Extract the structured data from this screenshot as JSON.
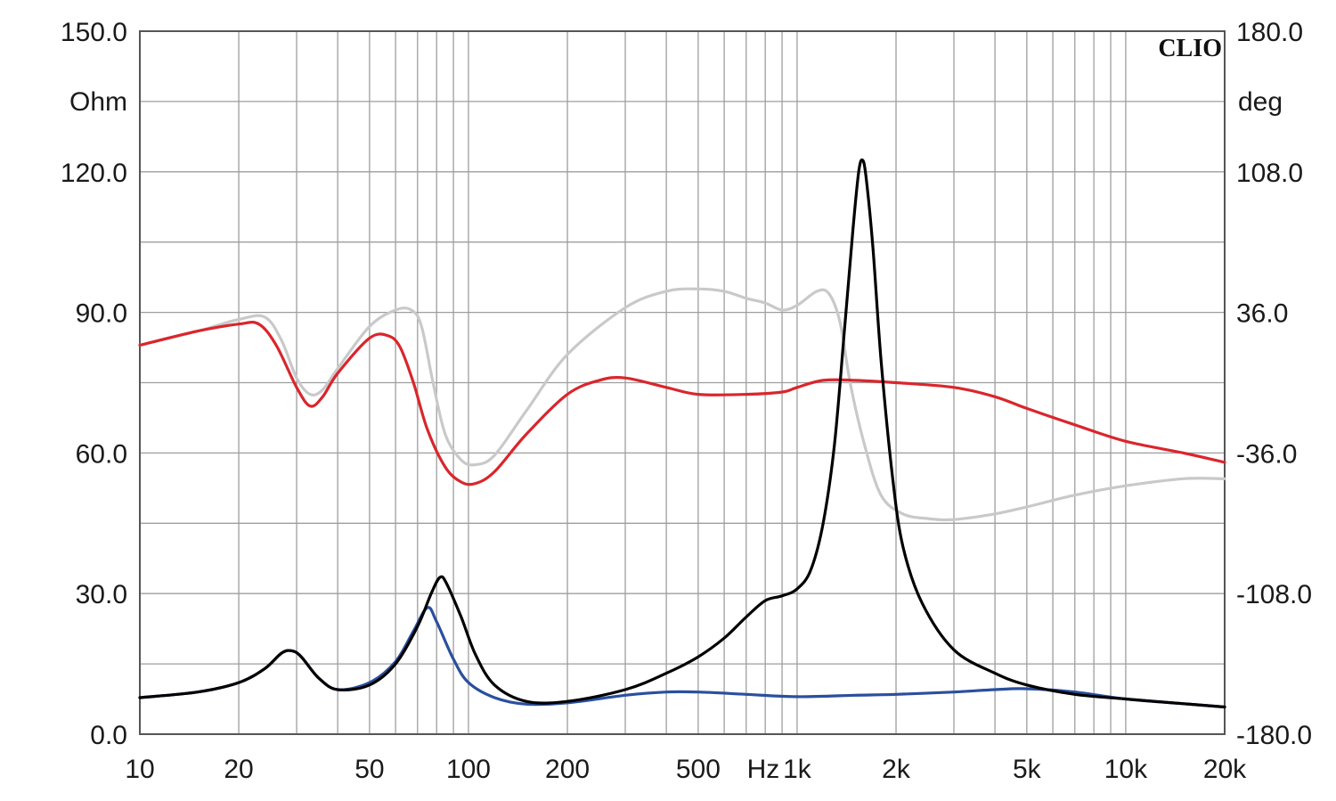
{
  "logo": "CLIO",
  "colors": {
    "background": "#ffffff",
    "grid": "#9e9e9e",
    "frame": "#555555",
    "impedance_black": "#000000",
    "impedance_blue": "#2a4f9e",
    "phase_red": "#d9262c",
    "phase_grey": "#c9c9c9"
  },
  "chart_data": {
    "type": "line",
    "x_scale": "log",
    "xlim": [
      10,
      20000
    ],
    "ylim_left": [
      0,
      150
    ],
    "ylim_right": [
      -180,
      180
    ],
    "grid": true,
    "left_unit": "Ohm",
    "right_unit": "deg",
    "x_tick_labels": [
      {
        "x": 10,
        "label": "10"
      },
      {
        "x": 20,
        "label": "20"
      },
      {
        "x": 50,
        "label": "50"
      },
      {
        "x": 100,
        "label": "100"
      },
      {
        "x": 200,
        "label": "200"
      },
      {
        "x": 500,
        "label": "500"
      },
      {
        "x": 1000,
        "label": "1k"
      },
      {
        "x": 2000,
        "label": "2k"
      },
      {
        "x": 5000,
        "label": "5k"
      },
      {
        "x": 10000,
        "label": "10k"
      },
      {
        "x": 20000,
        "label": "20k"
      }
    ],
    "x_unit_label": {
      "x": 1000,
      "label": "Hz"
    },
    "y_left_tick_labels": [
      {
        "y": 0,
        "label": "0.0"
      },
      {
        "y": 30,
        "label": "30.0"
      },
      {
        "y": 60,
        "label": "60.0"
      },
      {
        "y": 90,
        "label": "90.0"
      },
      {
        "y": 120,
        "label": "120.0"
      },
      {
        "y": 150,
        "label": "150.0"
      }
    ],
    "y_right_tick_labels": [
      {
        "y": -180,
        "label": "-180.0"
      },
      {
        "y": -108,
        "label": "-108.0"
      },
      {
        "y": -36,
        "label": "-36.0"
      },
      {
        "y": 36,
        "label": "36.0"
      },
      {
        "y": 108,
        "label": "108.0"
      },
      {
        "y": 180,
        "label": "180.0"
      }
    ],
    "series": [
      {
        "axis": "left",
        "color": "#c9c9c9",
        "points": [
          [
            10,
            83
          ],
          [
            15,
            86
          ],
          [
            20,
            88.5
          ],
          [
            24,
            89
          ],
          [
            27,
            84
          ],
          [
            30,
            76
          ],
          [
            33,
            72.5
          ],
          [
            36,
            73.5
          ],
          [
            40,
            78
          ],
          [
            50,
            87
          ],
          [
            60,
            90.5
          ],
          [
            67,
            90.5
          ],
          [
            72,
            87
          ],
          [
            78,
            75
          ],
          [
            85,
            64
          ],
          [
            95,
            58.5
          ],
          [
            105,
            57.5
          ],
          [
            120,
            59.5
          ],
          [
            150,
            69
          ],
          [
            200,
            81
          ],
          [
            300,
            91
          ],
          [
            400,
            94.5
          ],
          [
            500,
            95
          ],
          [
            600,
            94.5
          ],
          [
            700,
            93
          ],
          [
            800,
            92
          ],
          [
            900,
            90.5
          ],
          [
            1000,
            91.5
          ],
          [
            1150,
            94.5
          ],
          [
            1250,
            94
          ],
          [
            1350,
            88
          ],
          [
            1450,
            75
          ],
          [
            1600,
            62
          ],
          [
            1800,
            51
          ],
          [
            2100,
            47
          ],
          [
            2500,
            46
          ],
          [
            3000,
            45.8
          ],
          [
            4000,
            47
          ],
          [
            5000,
            48.5
          ],
          [
            7000,
            51
          ],
          [
            10000,
            53
          ],
          [
            15000,
            54.5
          ],
          [
            20000,
            54.5
          ]
        ]
      },
      {
        "axis": "left",
        "color": "#d9262c",
        "points": [
          [
            10,
            83
          ],
          [
            15,
            86
          ],
          [
            20,
            87.5
          ],
          [
            23,
            87.5
          ],
          [
            26,
            83
          ],
          [
            30,
            74
          ],
          [
            33,
            70
          ],
          [
            36,
            72
          ],
          [
            40,
            77
          ],
          [
            50,
            84.5
          ],
          [
            57,
            85
          ],
          [
            62,
            82.5
          ],
          [
            68,
            75
          ],
          [
            75,
            65
          ],
          [
            85,
            57
          ],
          [
            95,
            53.8
          ],
          [
            105,
            53.5
          ],
          [
            120,
            56
          ],
          [
            150,
            64
          ],
          [
            200,
            72.5
          ],
          [
            250,
            75.5
          ],
          [
            300,
            76
          ],
          [
            400,
            74
          ],
          [
            500,
            72.5
          ],
          [
            700,
            72.5
          ],
          [
            900,
            73
          ],
          [
            1000,
            74
          ],
          [
            1200,
            75.5
          ],
          [
            1500,
            75.5
          ],
          [
            2000,
            75
          ],
          [
            3000,
            74
          ],
          [
            4000,
            72
          ],
          [
            5000,
            69.5
          ],
          [
            7000,
            66
          ],
          [
            10000,
            62.5
          ],
          [
            15000,
            60
          ],
          [
            20000,
            58
          ]
        ]
      },
      {
        "axis": "left",
        "color": "#2a4f9e",
        "points": [
          [
            10,
            7.8
          ],
          [
            15,
            9
          ],
          [
            20,
            11
          ],
          [
            24,
            14
          ],
          [
            27,
            17.3
          ],
          [
            29,
            17.8
          ],
          [
            31,
            16.5
          ],
          [
            35,
            12
          ],
          [
            40,
            9.5
          ],
          [
            50,
            11
          ],
          [
            60,
            15.5
          ],
          [
            68,
            22
          ],
          [
            75,
            27
          ],
          [
            80,
            24
          ],
          [
            90,
            16
          ],
          [
            100,
            11
          ],
          [
            120,
            7.8
          ],
          [
            150,
            6.4
          ],
          [
            200,
            6.7
          ],
          [
            300,
            8.3
          ],
          [
            400,
            9
          ],
          [
            500,
            9
          ],
          [
            700,
            8.5
          ],
          [
            1000,
            8
          ],
          [
            1500,
            8.3
          ],
          [
            2000,
            8.5
          ],
          [
            3000,
            9
          ],
          [
            4000,
            9.5
          ],
          [
            5000,
            9.7
          ],
          [
            7000,
            9
          ],
          [
            10000,
            7.5
          ],
          [
            15000,
            6.5
          ],
          [
            20000,
            5.8
          ]
        ]
      },
      {
        "axis": "left",
        "color": "#000000",
        "points": [
          [
            10,
            7.8
          ],
          [
            15,
            9
          ],
          [
            20,
            11
          ],
          [
            24,
            14
          ],
          [
            27,
            17.3
          ],
          [
            29,
            17.8
          ],
          [
            31,
            16.5
          ],
          [
            35,
            12
          ],
          [
            40,
            9.5
          ],
          [
            50,
            10.5
          ],
          [
            60,
            15
          ],
          [
            70,
            23
          ],
          [
            77,
            30
          ],
          [
            82,
            33.5
          ],
          [
            86,
            32
          ],
          [
            95,
            25
          ],
          [
            105,
            17
          ],
          [
            120,
            10.5
          ],
          [
            150,
            7
          ],
          [
            200,
            7
          ],
          [
            300,
            9.5
          ],
          [
            400,
            13
          ],
          [
            500,
            16.5
          ],
          [
            600,
            20.5
          ],
          [
            700,
            25
          ],
          [
            800,
            28.5
          ],
          [
            900,
            29.5
          ],
          [
            1000,
            31
          ],
          [
            1100,
            35
          ],
          [
            1200,
            45
          ],
          [
            1300,
            62
          ],
          [
            1400,
            88
          ],
          [
            1480,
            108
          ],
          [
            1540,
            120
          ],
          [
            1580,
            122.5
          ],
          [
            1620,
            119
          ],
          [
            1700,
            104
          ],
          [
            1800,
            80
          ],
          [
            1950,
            55
          ],
          [
            2100,
            40
          ],
          [
            2400,
            28
          ],
          [
            3000,
            18
          ],
          [
            4000,
            13
          ],
          [
            5000,
            10.5
          ],
          [
            7000,
            8.5
          ],
          [
            10000,
            7.5
          ],
          [
            15000,
            6.5
          ],
          [
            20000,
            5.8
          ]
        ]
      }
    ]
  }
}
